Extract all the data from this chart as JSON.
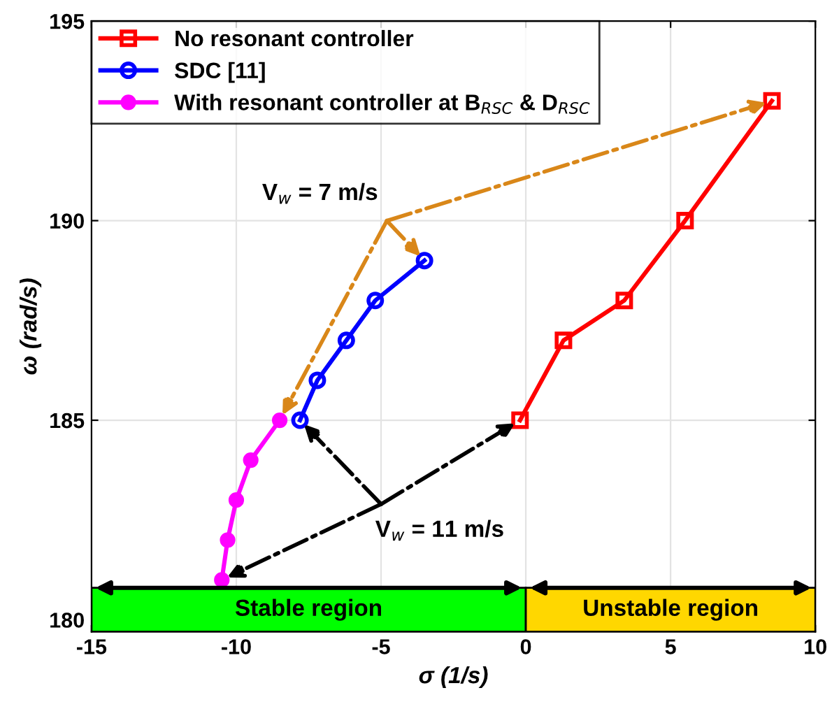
{
  "chart_data": {
    "type": "line",
    "xlabel": "σ (1/s)",
    "ylabel": "ω (rad/s)",
    "xlim": [
      -15,
      10
    ],
    "xticks": [
      -15,
      -10,
      -5,
      0,
      5,
      10
    ],
    "ylim": [
      179.7,
      195
    ],
    "yticks": [
      180,
      185,
      190,
      195
    ],
    "grid": true,
    "legend": "top left",
    "series": [
      {
        "name": "No resonant controller",
        "color": "#ff0000",
        "marker": "square",
        "x": [
          -0.2,
          1.3,
          3.4,
          5.5,
          8.5
        ],
        "values": [
          185,
          187,
          188,
          190,
          193
        ]
      },
      {
        "name": "SDC [11]",
        "color": "#0000ff",
        "marker": "circle",
        "x": [
          -7.8,
          -7.2,
          -6.2,
          -5.2,
          -3.5
        ],
        "values": [
          185,
          186,
          187,
          188,
          189
        ]
      },
      {
        "name": "With resonant controller at B$_{RSC}$ & D$_{RSC}$",
        "color": "#ff00ff",
        "marker": "dot",
        "x": [
          -10.5,
          -10.3,
          -10,
          -9.5,
          -8.5
        ],
        "values": [
          181,
          182,
          183,
          184,
          185
        ]
      }
    ],
    "annotations": [
      {
        "text": "V$_{w}$ = 7 m/s",
        "x": -3.5,
        "y": 189
      },
      {
        "text": "V$_{w}$ = 11 m/s",
        "x": -7.8,
        "y": 185
      }
    ],
    "bands": [
      {
        "axis": "x",
        "from": -15,
        "to": 0,
        "label": "Stable region",
        "color": "#00ff00"
      },
      {
        "axis": "x",
        "from": 0,
        "to": 10,
        "label": "Unstable region",
        "color": "#ffd700"
      }
    ]
  }
}
